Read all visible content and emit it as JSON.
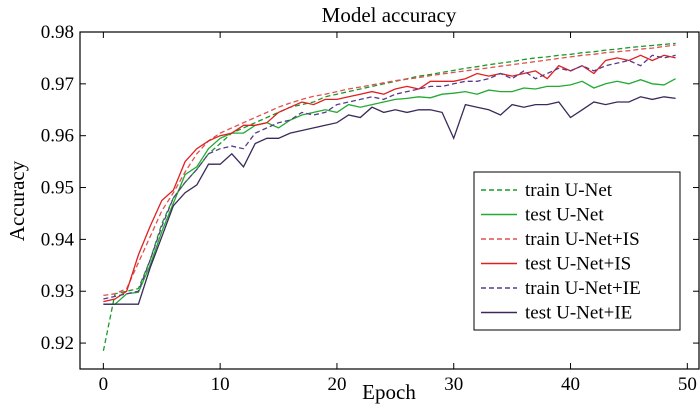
{
  "chart_data": {
    "type": "line",
    "title": "Model accuracy",
    "xlabel": "Epoch",
    "ylabel": "Accuracy",
    "xlim": [
      -2,
      51
    ],
    "ylim": [
      0.915,
      0.98
    ],
    "xticks": [
      0,
      10,
      20,
      30,
      40,
      50
    ],
    "yticks": [
      0.92,
      0.93,
      0.94,
      0.95,
      0.96,
      0.97,
      0.98
    ],
    "ytick_labels": [
      "0.92",
      "0.93",
      "0.94",
      "0.95",
      "0.96",
      "0.97",
      "0.98"
    ],
    "legend_position": "lower-right",
    "grid": false,
    "x": [
      0,
      1,
      2,
      3,
      4,
      5,
      6,
      7,
      8,
      9,
      10,
      11,
      12,
      13,
      14,
      15,
      16,
      17,
      18,
      19,
      20,
      21,
      22,
      23,
      24,
      25,
      26,
      27,
      28,
      29,
      30,
      31,
      32,
      33,
      34,
      35,
      36,
      37,
      38,
      39,
      40,
      41,
      42,
      43,
      44,
      45,
      46,
      47,
      48,
      49
    ],
    "series": [
      {
        "name": "train U-Net",
        "color": "#1a9a2a",
        "dash": "dashed",
        "values": [
          0.9185,
          0.9295,
          0.93,
          0.9305,
          0.936,
          0.943,
          0.948,
          0.951,
          0.9535,
          0.9565,
          0.9585,
          0.9605,
          0.9615,
          0.9625,
          0.9635,
          0.9645,
          0.9655,
          0.966,
          0.9665,
          0.9675,
          0.968,
          0.9685,
          0.969,
          0.9695,
          0.97,
          0.9705,
          0.971,
          0.9715,
          0.9718,
          0.9722,
          0.9726,
          0.973,
          0.9733,
          0.9737,
          0.974,
          0.9743,
          0.9747,
          0.975,
          0.9752,
          0.9755,
          0.9757,
          0.976,
          0.9762,
          0.9765,
          0.9767,
          0.977,
          0.9772,
          0.9774,
          0.9776,
          0.9778
        ]
      },
      {
        "name": "test U-Net",
        "color": "#22aa33",
        "dash": "solid",
        "values": [
          0.9275,
          0.9275,
          0.9295,
          0.9298,
          0.935,
          0.9415,
          0.947,
          0.9525,
          0.954,
          0.9575,
          0.9595,
          0.9605,
          0.9605,
          0.962,
          0.9625,
          0.9615,
          0.963,
          0.964,
          0.9645,
          0.965,
          0.9645,
          0.966,
          0.9655,
          0.966,
          0.9665,
          0.967,
          0.9672,
          0.9675,
          0.9673,
          0.968,
          0.9682,
          0.9685,
          0.968,
          0.9688,
          0.9685,
          0.9685,
          0.9692,
          0.969,
          0.9695,
          0.9695,
          0.9698,
          0.9705,
          0.9692,
          0.97,
          0.9705,
          0.97,
          0.9708,
          0.97,
          0.9698,
          0.971
        ]
      },
      {
        "name": "train U-Net+IS",
        "color": "#e05050",
        "dash": "dashed",
        "values": [
          0.9292,
          0.9295,
          0.9305,
          0.9355,
          0.9405,
          0.9455,
          0.949,
          0.953,
          0.9565,
          0.959,
          0.9605,
          0.9615,
          0.9625,
          0.9635,
          0.9645,
          0.9655,
          0.9663,
          0.967,
          0.9676,
          0.968,
          0.9685,
          0.969,
          0.9694,
          0.9698,
          0.9702,
          0.9706,
          0.9709,
          0.9712,
          0.9716,
          0.9719,
          0.9722,
          0.9725,
          0.9728,
          0.9731,
          0.9734,
          0.9737,
          0.974,
          0.9743,
          0.9746,
          0.9749,
          0.9752,
          0.9755,
          0.9757,
          0.976,
          0.9762,
          0.9764,
          0.9767,
          0.9769,
          0.9772,
          0.9775
        ]
      },
      {
        "name": "test U-Net+IS",
        "color": "#e02020",
        "dash": "solid",
        "values": [
          0.928,
          0.9285,
          0.93,
          0.937,
          0.9425,
          0.9475,
          0.9495,
          0.955,
          0.9575,
          0.959,
          0.96,
          0.9605,
          0.962,
          0.962,
          0.9625,
          0.9645,
          0.9655,
          0.9665,
          0.966,
          0.967,
          0.967,
          0.9675,
          0.968,
          0.9685,
          0.968,
          0.969,
          0.9695,
          0.969,
          0.9705,
          0.9705,
          0.9705,
          0.971,
          0.972,
          0.9715,
          0.972,
          0.9715,
          0.972,
          0.9725,
          0.971,
          0.9735,
          0.9725,
          0.9735,
          0.972,
          0.9745,
          0.975,
          0.9745,
          0.9755,
          0.9745,
          0.9755,
          0.975
        ]
      },
      {
        "name": "train U-Net+IE",
        "color": "#5a3a8a",
        "dash": "dashed",
        "values": [
          0.9285,
          0.929,
          0.9295,
          0.93,
          0.936,
          0.9425,
          0.948,
          0.951,
          0.9535,
          0.9565,
          0.9575,
          0.958,
          0.9575,
          0.9605,
          0.9615,
          0.9625,
          0.963,
          0.9645,
          0.964,
          0.9645,
          0.966,
          0.9665,
          0.967,
          0.9675,
          0.967,
          0.968,
          0.9685,
          0.969,
          0.9695,
          0.9695,
          0.97,
          0.9705,
          0.9705,
          0.971,
          0.972,
          0.971,
          0.9725,
          0.971,
          0.972,
          0.973,
          0.9725,
          0.9735,
          0.9725,
          0.9735,
          0.974,
          0.9745,
          0.9735,
          0.9755,
          0.975,
          0.9755
        ]
      },
      {
        "name": "test U-Net+IE",
        "color": "#3a2a5a",
        "dash": "solid",
        "values": [
          0.9275,
          0.9275,
          0.9275,
          0.9275,
          0.9345,
          0.9405,
          0.9465,
          0.949,
          0.9505,
          0.9545,
          0.9545,
          0.9565,
          0.954,
          0.9585,
          0.9595,
          0.9595,
          0.9605,
          0.961,
          0.9615,
          0.962,
          0.9625,
          0.964,
          0.9635,
          0.9655,
          0.9645,
          0.965,
          0.9645,
          0.965,
          0.965,
          0.9645,
          0.9595,
          0.966,
          0.9655,
          0.965,
          0.964,
          0.966,
          0.9655,
          0.966,
          0.966,
          0.9665,
          0.9635,
          0.965,
          0.9665,
          0.966,
          0.9665,
          0.9665,
          0.9675,
          0.967,
          0.9675,
          0.9672
        ]
      }
    ]
  }
}
